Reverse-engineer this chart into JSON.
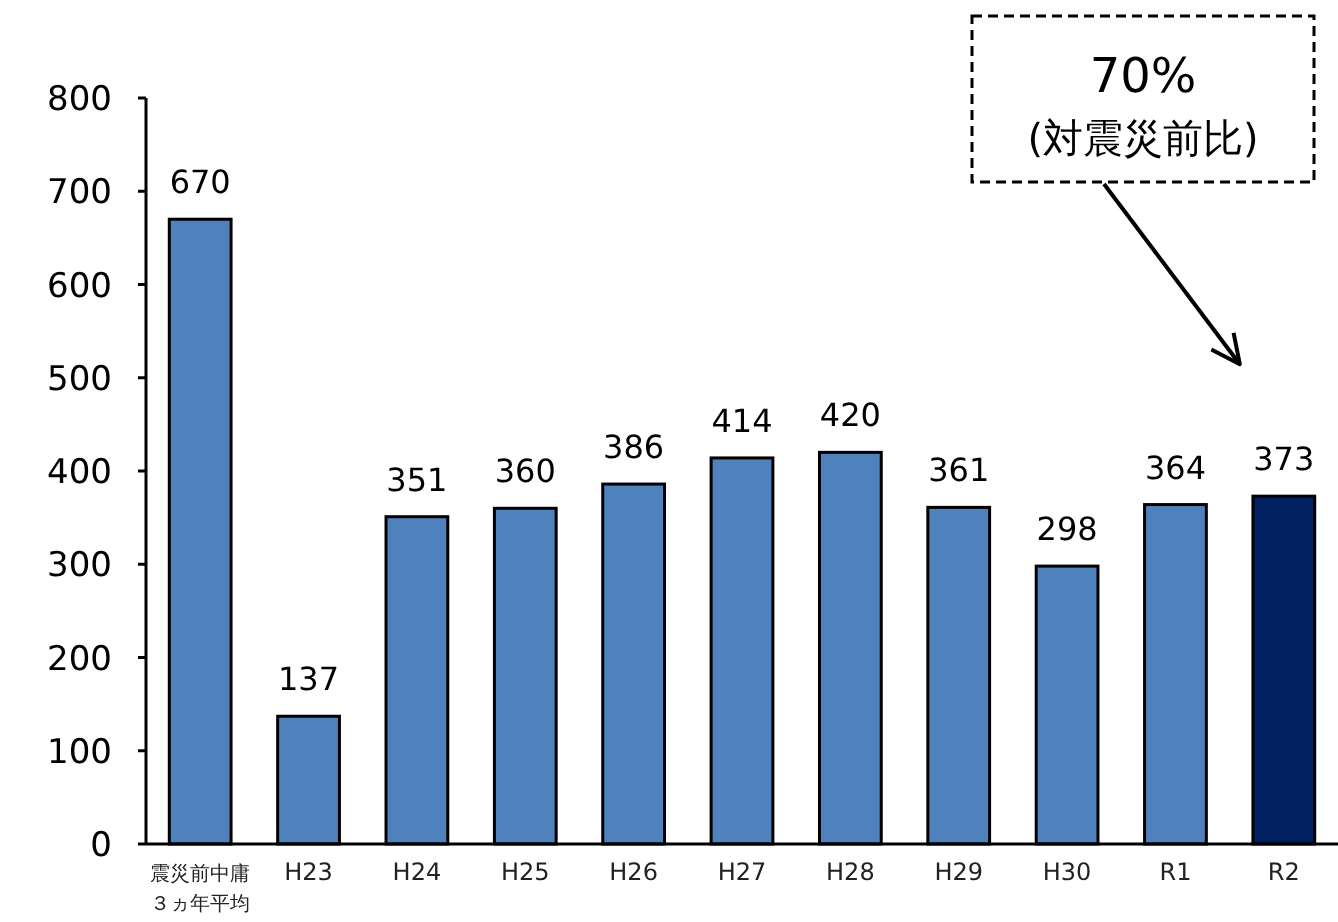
{
  "chart_data": {
    "type": "bar",
    "categories": [
      "震災前中庸３ヵ年平均",
      "H23",
      "H24",
      "H25",
      "H26",
      "H27",
      "H28",
      "H29",
      "H30",
      "R1",
      "R2"
    ],
    "values": [
      670,
      137,
      351,
      360,
      386,
      414,
      420,
      361,
      298,
      364,
      373
    ],
    "colors": [
      "#4f81bd",
      "#4f81bd",
      "#4f81bd",
      "#4f81bd",
      "#4f81bd",
      "#4f81bd",
      "#4f81bd",
      "#4f81bd",
      "#4f81bd",
      "#4f81bd",
      "#002060"
    ],
    "ylim": [
      0,
      800
    ],
    "yticks": [
      0,
      100,
      200,
      300,
      400,
      500,
      600,
      700,
      800
    ],
    "data_labels": true,
    "annotations": [
      "70%",
      "(対震災前比)"
    ]
  }
}
